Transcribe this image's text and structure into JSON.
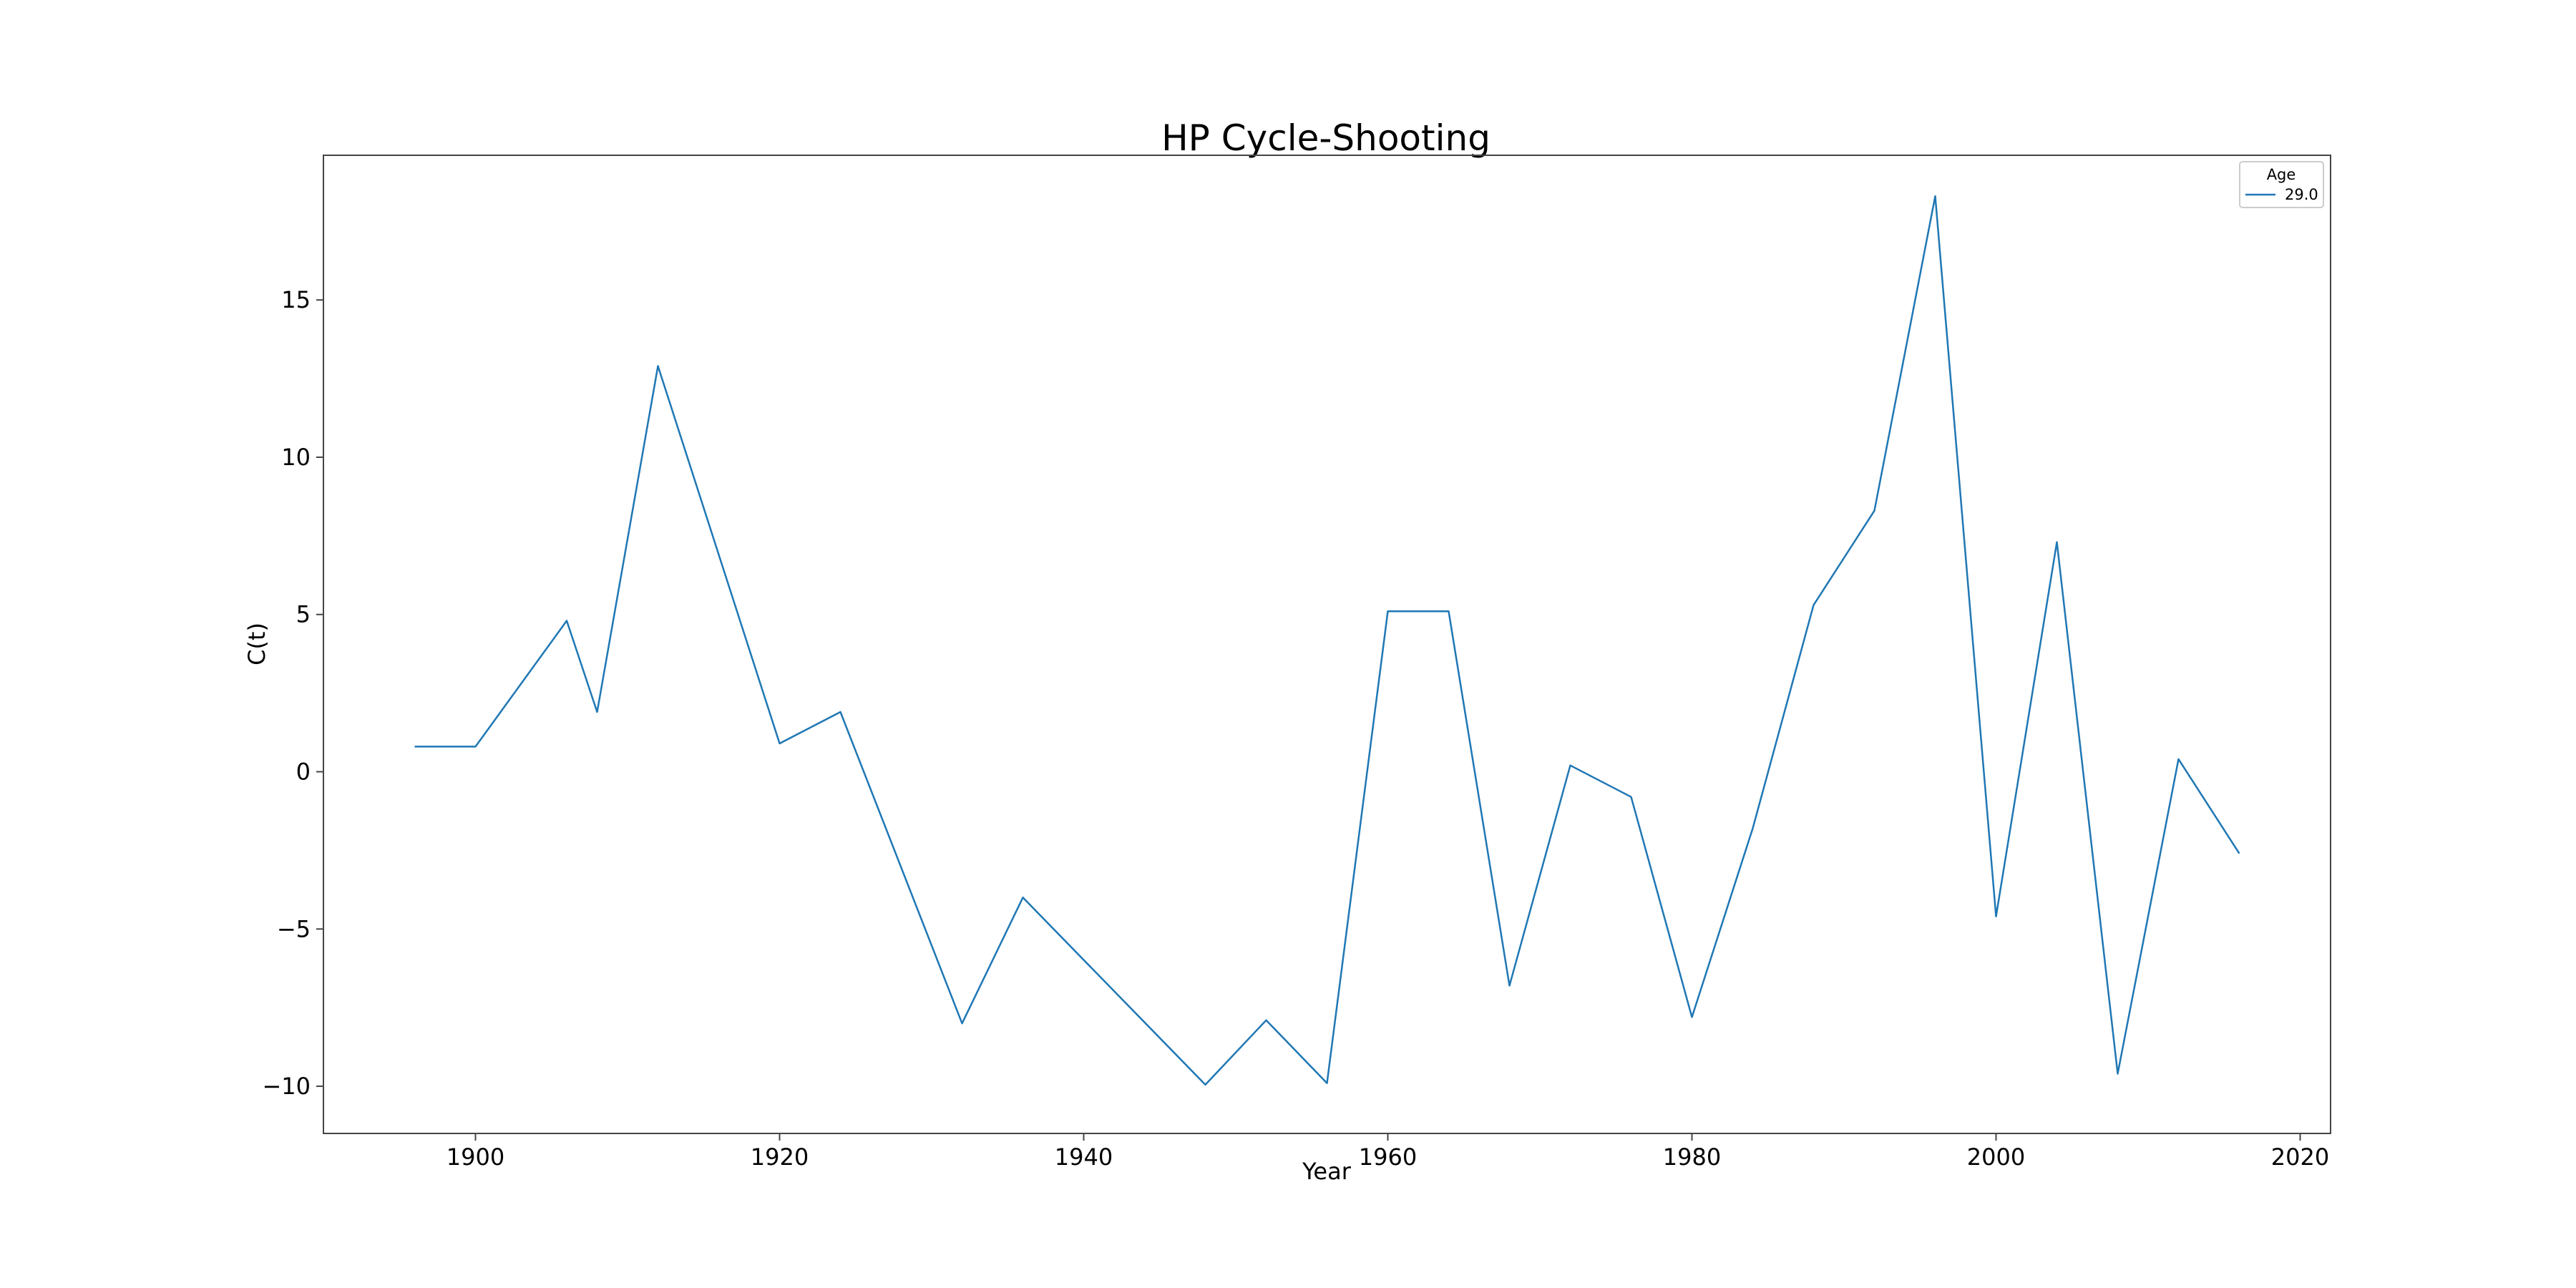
{
  "chart_data": {
    "type": "line",
    "title": "HP Cycle-Shooting",
    "xlabel": "Year",
    "ylabel": "C(t)",
    "xlim": [
      1890,
      2022
    ],
    "ylim": [
      -11.5,
      19.6
    ],
    "x_ticks": [
      1900,
      1920,
      1940,
      1960,
      1980,
      2000,
      2020
    ],
    "y_ticks": [
      -10,
      -5,
      0,
      5,
      10,
      15
    ],
    "grid": false,
    "legend": {
      "title": "Age",
      "placement": "top-right"
    },
    "series": [
      {
        "name": "29.0",
        "color": "#1f77b4",
        "x": [
          1896,
          1900,
          1906,
          1908,
          1912,
          1920,
          1924,
          1932,
          1936,
          1948,
          1952,
          1956,
          1960,
          1964,
          1968,
          1972,
          1976,
          1980,
          1984,
          1988,
          1992,
          1996,
          2000,
          2004,
          2008,
          2012,
          2016
        ],
        "y": [
          0.8,
          0.8,
          4.8,
          1.9,
          12.9,
          0.9,
          1.9,
          -8.0,
          -4.0,
          -9.95,
          -7.9,
          -9.9,
          5.1,
          5.1,
          -6.8,
          0.2,
          -0.8,
          -7.8,
          -1.8,
          5.3,
          8.3,
          18.3,
          -4.6,
          7.3,
          -9.6,
          0.4,
          -2.6
        ]
      }
    ]
  }
}
